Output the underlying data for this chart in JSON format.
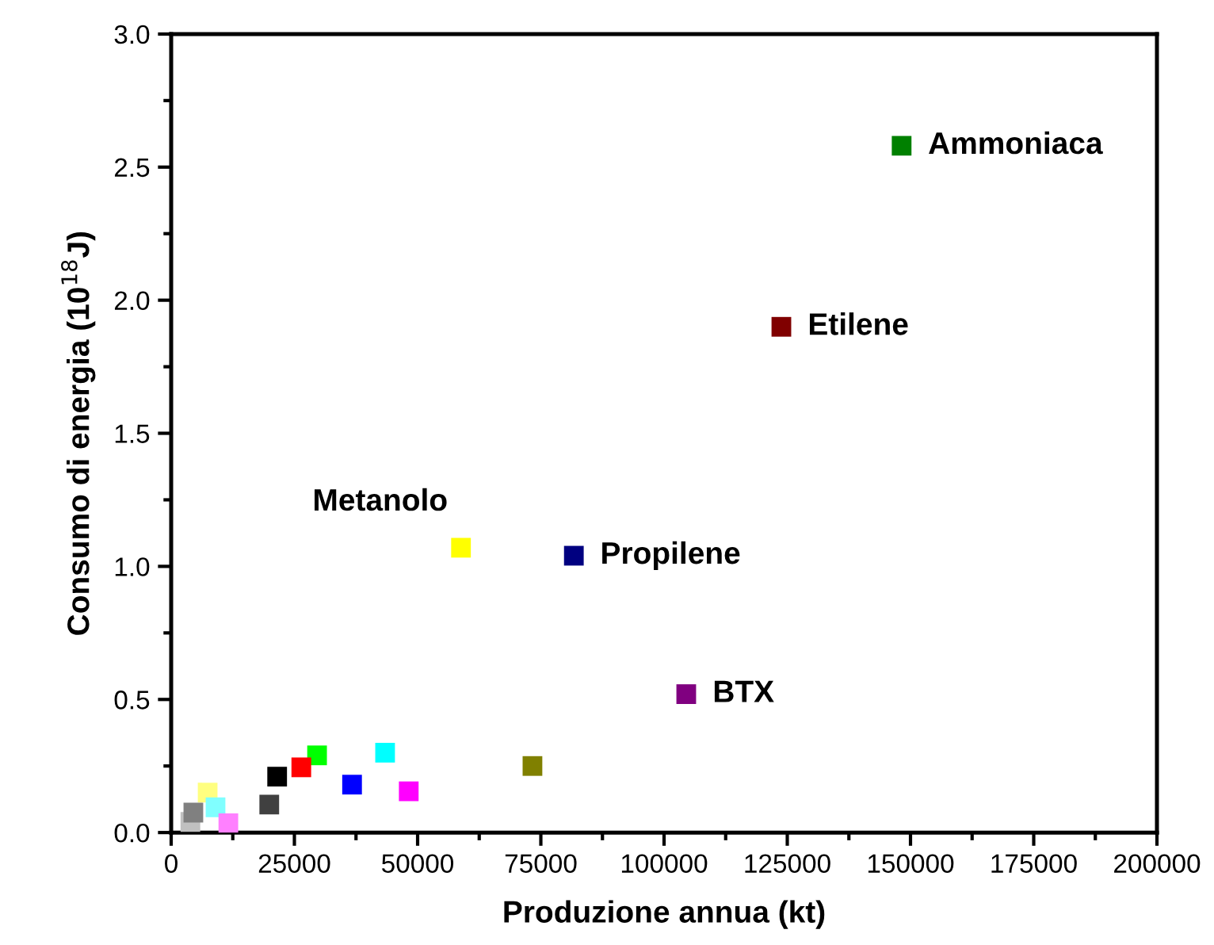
{
  "chart_data": {
    "type": "scatter",
    "xlabel": "Produzione annua (kt)",
    "ylabel": "Consumo di energia (10$^{18}$J)",
    "marker": "square",
    "grid": false,
    "legend": false,
    "xlim": [
      0,
      200000
    ],
    "xticks": [
      0,
      25000,
      50000,
      75000,
      100000,
      125000,
      150000,
      175000,
      200000
    ],
    "ylim": [
      0,
      3.0
    ],
    "yticks": [
      {
        "value": 0,
        "label": "0.0"
      },
      {
        "value": 0.5,
        "label": "0.5"
      },
      {
        "value": 1.0,
        "label": "1.0"
      },
      {
        "value": 1.5,
        "label": "1.5"
      },
      {
        "value": 2.0,
        "label": "2.0"
      },
      {
        "value": 2.5,
        "label": "2.5"
      },
      {
        "value": 3.0,
        "label": "3.0"
      }
    ],
    "series": [
      {
        "name": "Ammoniaca",
        "color": "#008000",
        "x": [
          148200
        ],
        "values": [
          2.58
        ]
      },
      {
        "name": "Etilene",
        "color": "#800000",
        "x": [
          123800
        ],
        "values": [
          1.9
        ]
      },
      {
        "name": "Metanolo",
        "color": "#ffff00",
        "x": [
          58800
        ],
        "values": [
          1.07
        ]
      },
      {
        "name": "Propilene",
        "color": "#000080",
        "x": [
          81700
        ],
        "values": [
          1.04
        ]
      },
      {
        "name": "BTX",
        "color": "#800080",
        "x": [
          104500
        ],
        "values": [
          0.52
        ]
      },
      {
        "color": "#808000",
        "x": [
          73300
        ],
        "values": [
          0.25
        ]
      },
      {
        "color": "#ff00ff",
        "x": [
          48200
        ],
        "values": [
          0.155
        ]
      },
      {
        "color": "#00ffff",
        "x": [
          43400
        ],
        "values": [
          0.3
        ]
      },
      {
        "color": "#0000ff",
        "x": [
          36700
        ],
        "values": [
          0.18
        ]
      },
      {
        "color": "#00ff00",
        "x": [
          29600
        ],
        "values": [
          0.29
        ]
      },
      {
        "color": "#ff0000",
        "x": [
          26400
        ],
        "values": [
          0.245
        ]
      },
      {
        "color": "#000000",
        "x": [
          21500
        ],
        "values": [
          0.21
        ]
      },
      {
        "color": "#404040",
        "x": [
          19900
        ],
        "values": [
          0.105
        ]
      },
      {
        "color": "#ffff80",
        "x": [
          7400
        ],
        "values": [
          0.15
        ]
      },
      {
        "color": "#80ffff",
        "x": [
          9000
        ],
        "values": [
          0.095
        ]
      },
      {
        "color": "#ff80ff",
        "x": [
          11600
        ],
        "values": [
          0.035
        ]
      },
      {
        "color": "#c0c0c0",
        "x": [
          3900
        ],
        "values": [
          0.04
        ]
      },
      {
        "color": "#808080",
        "x": [
          4500
        ],
        "values": [
          0.075
        ]
      }
    ]
  }
}
